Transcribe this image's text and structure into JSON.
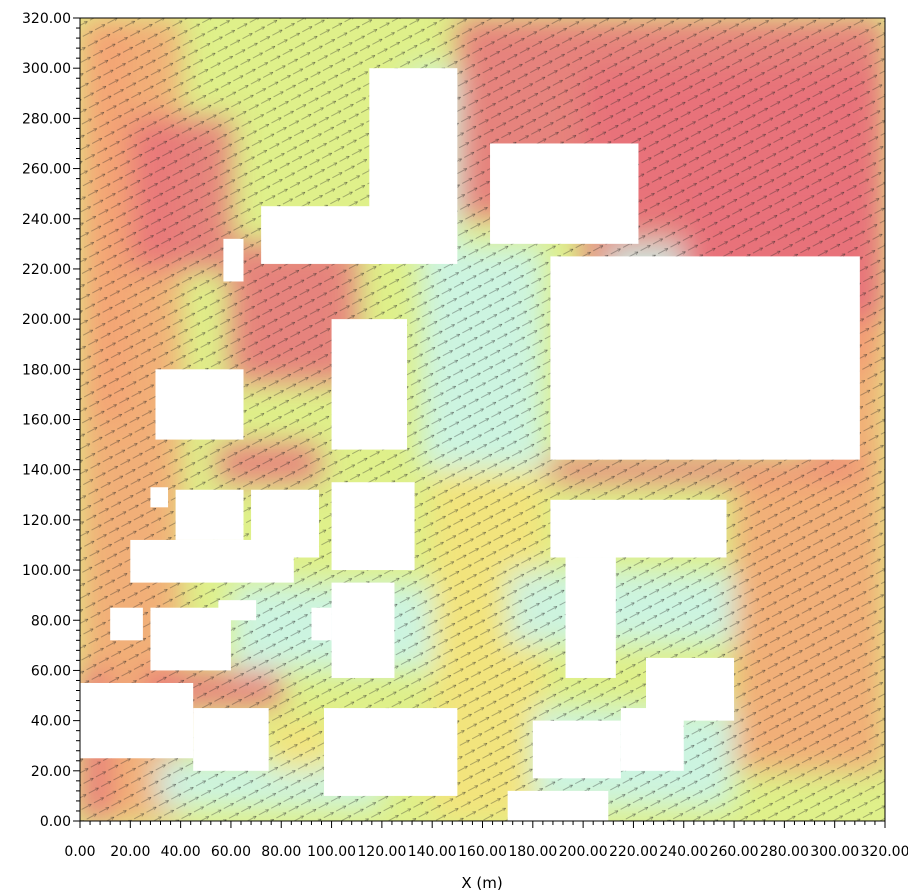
{
  "chart_data": {
    "type": "heatmap",
    "title": "",
    "xlabel": "X (m)",
    "ylabel": "",
    "xlim": [
      0,
      320
    ],
    "ylim": [
      0,
      320
    ],
    "x_ticks": [
      0,
      20,
      40,
      60,
      80,
      100,
      120,
      140,
      160,
      180,
      200,
      220,
      240,
      260,
      280,
      300,
      320
    ],
    "x_tick_labels": [
      "0.00",
      "20.00",
      "40.00",
      "60.00",
      "80.00",
      "100.00",
      "120.00",
      "140.00",
      "160.00",
      "180.00",
      "200.00",
      "220.00",
      "240.00",
      "260.00",
      "280.00",
      "300.00",
      "320.00"
    ],
    "y_ticks": [
      0,
      20,
      40,
      60,
      80,
      100,
      120,
      140,
      160,
      180,
      200,
      220,
      240,
      260,
      280,
      300,
      320
    ],
    "y_tick_labels": [
      "0.00",
      "20.00",
      "40.00",
      "60.00",
      "80.00",
      "100.00",
      "120.00",
      "140.00",
      "160.00",
      "180.00",
      "200.00",
      "220.00",
      "240.00",
      "260.00",
      "280.00",
      "300.00",
      "320.00"
    ],
    "grid": false,
    "legend": "none",
    "description_free_colors": {
      "high": "#e8707a",
      "mid_high": "#f4a374",
      "mid": "#f6e27a",
      "mid_low": "#dff08a",
      "low": "#c9f4ee",
      "building": "#ffffff"
    },
    "flow_direction_deg": -30,
    "buildings": [
      {
        "x0": 0,
        "y0": 25,
        "x1": 45,
        "y1": 55
      },
      {
        "x0": 45,
        "y0": 20,
        "x1": 75,
        "y1": 45
      },
      {
        "x0": 97,
        "y0": 10,
        "x1": 150,
        "y1": 45
      },
      {
        "x0": 170,
        "y0": 0,
        "x1": 210,
        "y1": 12
      },
      {
        "x0": 180,
        "y0": 17,
        "x1": 215,
        "y1": 40
      },
      {
        "x0": 215,
        "y0": 20,
        "x1": 240,
        "y1": 45
      },
      {
        "x0": 225,
        "y0": 40,
        "x1": 260,
        "y1": 65
      },
      {
        "x0": 12,
        "y0": 72,
        "x1": 25,
        "y1": 85
      },
      {
        "x0": 28,
        "y0": 60,
        "x1": 60,
        "y1": 85
      },
      {
        "x0": 55,
        "y0": 80,
        "x1": 70,
        "y1": 88
      },
      {
        "x0": 92,
        "y0": 72,
        "x1": 100,
        "y1": 85
      },
      {
        "x0": 100,
        "y0": 57,
        "x1": 125,
        "y1": 95
      },
      {
        "x0": 193,
        "y0": 57,
        "x1": 213,
        "y1": 105
      },
      {
        "x0": 20,
        "y0": 95,
        "x1": 85,
        "y1": 112
      },
      {
        "x0": 28,
        "y0": 125,
        "x1": 35,
        "y1": 133
      },
      {
        "x0": 38,
        "y0": 112,
        "x1": 65,
        "y1": 132
      },
      {
        "x0": 68,
        "y0": 105,
        "x1": 95,
        "y1": 132
      },
      {
        "x0": 100,
        "y0": 100,
        "x1": 133,
        "y1": 135
      },
      {
        "x0": 187,
        "y0": 105,
        "x1": 257,
        "y1": 128
      },
      {
        "x0": 30,
        "y0": 152,
        "x1": 65,
        "y1": 180
      },
      {
        "x0": 100,
        "y0": 148,
        "x1": 130,
        "y1": 200
      },
      {
        "x0": 187,
        "y0": 144,
        "x1": 310,
        "y1": 225
      },
      {
        "x0": 57,
        "y0": 215,
        "x1": 65,
        "y1": 232
      },
      {
        "x0": 72,
        "y0": 222,
        "x1": 120,
        "y1": 245
      },
      {
        "x0": 115,
        "y0": 222,
        "x1": 150,
        "y1": 300
      },
      {
        "x0": 163,
        "y0": 230,
        "x1": 222,
        "y1": 270
      }
    ]
  }
}
